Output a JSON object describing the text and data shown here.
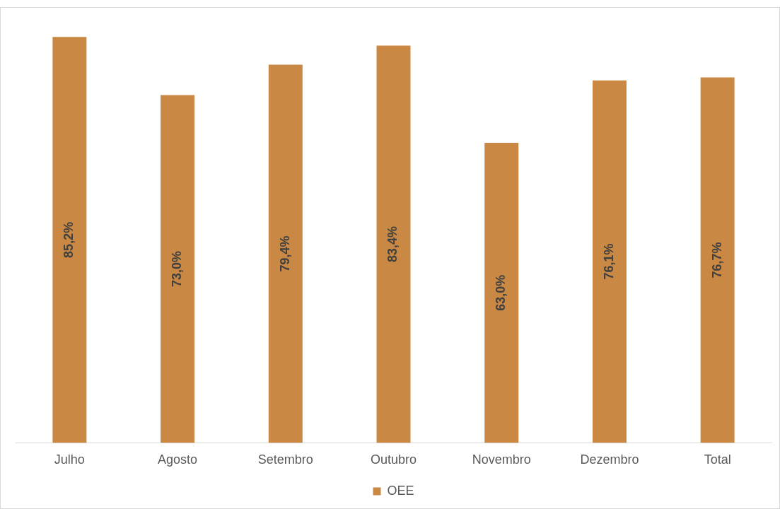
{
  "chart_data": {
    "type": "bar",
    "categories": [
      "Julho",
      "Agosto",
      "Setembro",
      "Outubro",
      "Novembro",
      "Dezembro",
      "Total"
    ],
    "series": [
      {
        "name": "OEE",
        "color": "#c98843",
        "values": [
          85.2,
          73.0,
          79.4,
          83.4,
          63.0,
          76.1,
          76.7
        ],
        "value_labels": [
          "85,2%",
          "73,0%",
          "79,4%",
          "83,4%",
          "63,0%",
          "76,1%",
          "76,7%"
        ]
      }
    ],
    "tick_labels": "x",
    "grid": false,
    "legend": "bottom"
  }
}
